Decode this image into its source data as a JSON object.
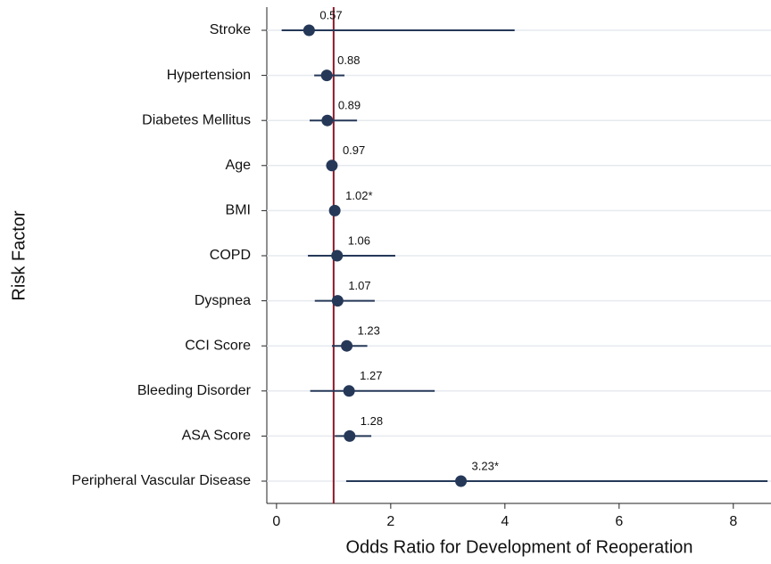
{
  "chart_data": {
    "type": "forest",
    "categories": [
      "Stroke",
      "Hypertension",
      "Diabetes Mellitus",
      "Age",
      "BMI",
      "COPD",
      "Dyspnea",
      "CCI Score",
      "Bleeding Disorder",
      "ASA Score",
      "Peripheral Vascular Disease"
    ],
    "values": [
      0.57,
      0.88,
      0.89,
      0.97,
      1.02,
      1.06,
      1.07,
      1.23,
      1.27,
      1.28,
      3.23
    ],
    "value_labels": [
      "0.57",
      "0.88",
      "0.89",
      "0.97",
      "1.02*",
      "1.06",
      "1.07",
      "1.23",
      "1.27",
      "1.28",
      "3.23*"
    ],
    "lower": [
      0.09,
      0.66,
      0.58,
      0.95,
      1.0,
      0.55,
      0.67,
      0.97,
      0.59,
      1.02,
      1.22
    ],
    "upper": [
      4.17,
      1.19,
      1.41,
      0.99,
      1.04,
      2.08,
      1.72,
      1.59,
      2.77,
      1.66,
      8.6
    ],
    "xlim": [
      -0.17,
      8.66
    ],
    "xticks": [
      0,
      2,
      4,
      6,
      8
    ],
    "reference_line": 1,
    "xlabel": "Odds Ratio for Development of Reoperation",
    "ylabel": "Risk Factor",
    "color": "#253858",
    "reference_color": "#8b1a2b",
    "grid": true
  }
}
